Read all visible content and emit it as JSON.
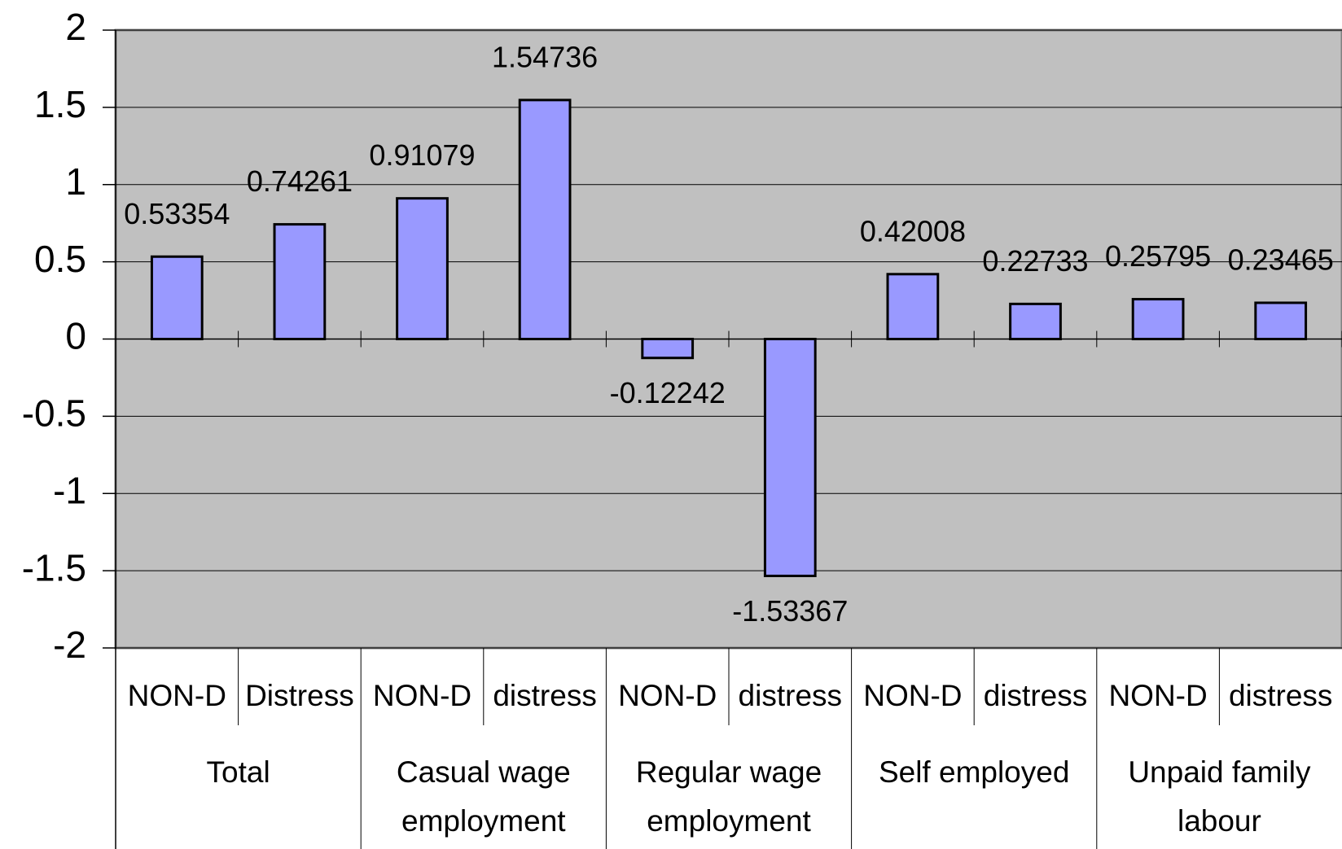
{
  "chart_data": {
    "type": "bar",
    "categories": [
      "NON-D",
      "Distress",
      "NON-D",
      "distress",
      "NON-D",
      "distress",
      "NON-D",
      "distress",
      "NON-D",
      "distress"
    ],
    "group_labels": [
      [
        "Total"
      ],
      [
        "Casual wage",
        "employment"
      ],
      [
        "Regular wage",
        "employment"
      ],
      [
        "Self employed"
      ],
      [
        "Unpaid family",
        "labour"
      ]
    ],
    "values": [
      0.53354,
      0.74261,
      0.91079,
      1.54736,
      -0.12242,
      -1.53367,
      0.42008,
      0.22733,
      0.25795,
      0.23465
    ],
    "color": "#9999ff",
    "plot_background": "#c0c0c0",
    "ylim": [
      -2,
      2
    ],
    "yticks": [
      -2,
      -1.5,
      -1,
      -0.5,
      0,
      0.5,
      1,
      1.5,
      2
    ],
    "grid": true
  }
}
